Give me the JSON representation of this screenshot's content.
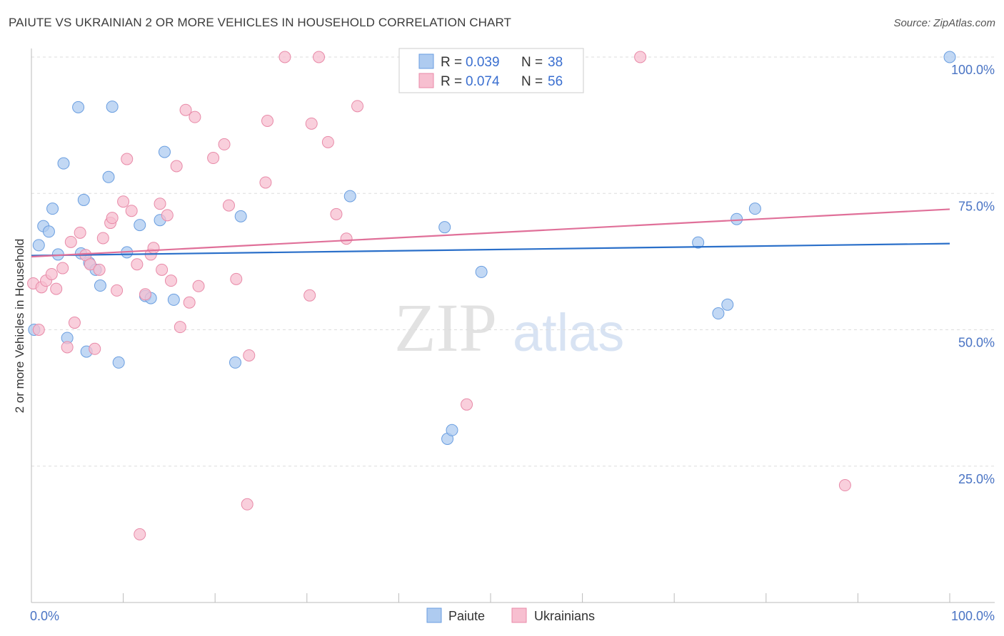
{
  "header": {
    "title": "PAIUTE VS UKRAINIAN 2 OR MORE VEHICLES IN HOUSEHOLD CORRELATION CHART",
    "source": "Source: ZipAtlas.com"
  },
  "watermark": {
    "zip": "ZIP",
    "atlas": "atlas"
  },
  "colors": {
    "paiute_fill": "#aecbf0",
    "paiute_stroke": "#6a9ee0",
    "paiute_line": "#2a6fc9",
    "ukrainians_fill": "#f7bfd0",
    "ukrainians_stroke": "#e88aa8",
    "ukrainians_line": "#e07099",
    "tick_label": "#4a74c4",
    "grid": "#dddddd"
  },
  "legend": {
    "rows": [
      {
        "series": "paiute",
        "r_label": "R =",
        "r_value": "0.039",
        "n_label": "N =",
        "n_value": "38"
      },
      {
        "series": "ukrainians",
        "r_label": "R =",
        "r_value": "0.074",
        "n_label": "N =",
        "n_value": "56"
      }
    ]
  },
  "chart_data": {
    "type": "scatter",
    "title": "PAIUTE VS UKRAINIAN 2 OR MORE VEHICLES IN HOUSEHOLD CORRELATION CHART",
    "xlabel": "",
    "ylabel": "2 or more Vehicles in Household",
    "xlim": [
      0,
      100
    ],
    "ylim": [
      0,
      102
    ],
    "x_tick_labels": [
      {
        "value": 0,
        "label": "0.0%"
      },
      {
        "value": 100,
        "label": "100.0%"
      }
    ],
    "y_tick_labels": [
      {
        "value": 25,
        "label": "25.0%"
      },
      {
        "value": 50,
        "label": "50.0%"
      },
      {
        "value": 75,
        "label": "75.0%"
      },
      {
        "value": 100,
        "label": "100.0%"
      }
    ],
    "legend_position": "top-center",
    "bottom_legend": [
      "Paiute",
      "Ukrainians"
    ],
    "series": [
      {
        "name": "Paiute",
        "key": "paiute",
        "trend": {
          "x0": 0,
          "y0": 63.6,
          "x1": 100,
          "y1": 65.8
        },
        "points": [
          [
            0.3,
            50.0
          ],
          [
            0.8,
            65.5
          ],
          [
            1.3,
            69.0
          ],
          [
            1.9,
            68.0
          ],
          [
            2.3,
            72.2
          ],
          [
            2.9,
            63.8
          ],
          [
            3.5,
            80.5
          ],
          [
            3.9,
            48.5
          ],
          [
            5.1,
            90.8
          ],
          [
            5.4,
            64.0
          ],
          [
            5.7,
            73.8
          ],
          [
            6.0,
            46.0
          ],
          [
            6.3,
            62.3
          ],
          [
            7.0,
            61.0
          ],
          [
            7.5,
            58.1
          ],
          [
            8.4,
            78.0
          ],
          [
            8.8,
            90.9
          ],
          [
            9.5,
            44.0
          ],
          [
            10.4,
            64.2
          ],
          [
            11.8,
            69.2
          ],
          [
            12.4,
            56.2
          ],
          [
            13.0,
            55.8
          ],
          [
            14.0,
            70.1
          ],
          [
            14.5,
            82.6
          ],
          [
            15.5,
            55.5
          ],
          [
            22.2,
            44.0
          ],
          [
            22.8,
            70.8
          ],
          [
            34.7,
            74.5
          ],
          [
            45.3,
            30.0
          ],
          [
            45.8,
            31.6
          ],
          [
            45.0,
            68.8
          ],
          [
            49.0,
            60.6
          ],
          [
            72.6,
            66.0
          ],
          [
            74.8,
            53.0
          ],
          [
            75.8,
            54.6
          ],
          [
            76.8,
            70.3
          ],
          [
            78.8,
            72.2
          ],
          [
            100.0,
            100.0
          ]
        ]
      },
      {
        "name": "Ukrainians",
        "key": "ukrainians",
        "trend": {
          "x0": 0,
          "y0": 63.4,
          "x1": 100,
          "y1": 72.1
        },
        "points": [
          [
            0.2,
            58.5
          ],
          [
            0.8,
            50.0
          ],
          [
            1.1,
            57.8
          ],
          [
            1.6,
            59.0
          ],
          [
            2.2,
            60.2
          ],
          [
            2.7,
            57.5
          ],
          [
            3.4,
            61.3
          ],
          [
            3.9,
            46.8
          ],
          [
            4.3,
            66.1
          ],
          [
            4.7,
            51.3
          ],
          [
            5.3,
            67.8
          ],
          [
            5.9,
            63.7
          ],
          [
            6.4,
            62.0
          ],
          [
            6.9,
            46.5
          ],
          [
            7.4,
            61.0
          ],
          [
            7.8,
            66.8
          ],
          [
            8.6,
            69.6
          ],
          [
            8.8,
            70.5
          ],
          [
            9.3,
            57.2
          ],
          [
            10.0,
            73.5
          ],
          [
            10.4,
            81.3
          ],
          [
            10.9,
            71.8
          ],
          [
            11.5,
            62.0
          ],
          [
            11.8,
            12.5
          ],
          [
            12.4,
            56.5
          ],
          [
            13.0,
            63.8
          ],
          [
            13.3,
            65.0
          ],
          [
            14.0,
            73.1
          ],
          [
            14.2,
            61.0
          ],
          [
            14.8,
            71.0
          ],
          [
            15.2,
            59.0
          ],
          [
            15.8,
            80.0
          ],
          [
            16.2,
            50.5
          ],
          [
            16.8,
            90.3
          ],
          [
            17.2,
            55.0
          ],
          [
            17.8,
            89.0
          ],
          [
            18.2,
            58.0
          ],
          [
            19.8,
            81.5
          ],
          [
            21.0,
            84.0
          ],
          [
            21.5,
            72.8
          ],
          [
            22.3,
            59.3
          ],
          [
            23.5,
            18.0
          ],
          [
            23.7,
            45.3
          ],
          [
            25.5,
            77.0
          ],
          [
            25.7,
            88.3
          ],
          [
            27.6,
            100.0
          ],
          [
            30.3,
            56.3
          ],
          [
            30.5,
            87.8
          ],
          [
            31.3,
            100.0
          ],
          [
            32.3,
            84.4
          ],
          [
            33.2,
            71.2
          ],
          [
            34.3,
            66.7
          ],
          [
            35.5,
            91.0
          ],
          [
            47.4,
            36.3
          ],
          [
            66.3,
            100.0
          ],
          [
            88.6,
            21.5
          ]
        ]
      }
    ]
  }
}
